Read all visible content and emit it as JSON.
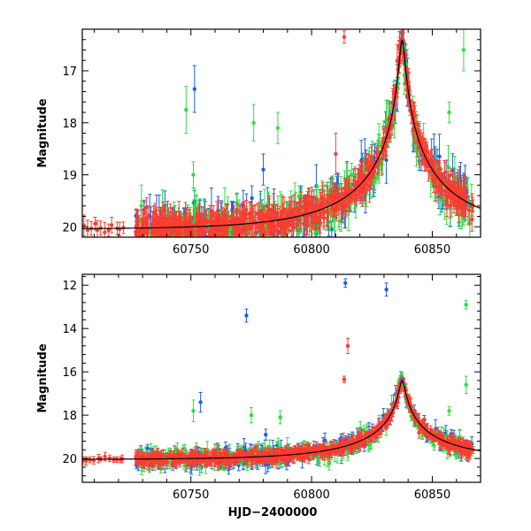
{
  "chart_data": [
    {
      "type": "scatter",
      "panel": "top",
      "xlabel": "",
      "ylabel": "Magnitude",
      "xlim": [
        60705,
        60870
      ],
      "ylim": [
        20.2,
        16.2
      ],
      "y_inverted": true,
      "xticks": [
        60750,
        60800,
        60850
      ],
      "yticks": [
        17,
        18,
        19,
        20
      ],
      "series_colors": [
        "#ff3b30",
        "#1f5fe0",
        "#2ee03a"
      ],
      "model_color": "#000000",
      "model": {
        "t0": 60837.5,
        "u0": 0.025,
        "tE": 45,
        "base": 20.05,
        "blend": 0.7
      },
      "outliers": [
        {
          "x": 60751.5,
          "y": 17.35,
          "err": 0.45,
          "series": 1
        },
        {
          "x": 60748.0,
          "y": 17.75,
          "err": 0.45,
          "series": 2
        },
        {
          "x": 60751.0,
          "y": 19.0,
          "err": 0.25,
          "series": 2
        },
        {
          "x": 60776.0,
          "y": 18.0,
          "err": 0.35,
          "series": 2
        },
        {
          "x": 60786.0,
          "y": 18.1,
          "err": 0.3,
          "series": 2
        },
        {
          "x": 60813.5,
          "y": 16.35,
          "err": 0.12,
          "series": 0
        },
        {
          "x": 60863.0,
          "y": 16.6,
          "err": 0.4,
          "series": 2
        },
        {
          "x": 60857.0,
          "y": 17.8,
          "err": 0.2,
          "series": 2
        },
        {
          "x": 60810.0,
          "y": 18.6,
          "err": 0.4,
          "series": 0
        },
        {
          "x": 60780.0,
          "y": 18.9,
          "err": 0.3,
          "series": 1
        }
      ]
    },
    {
      "type": "scatter",
      "panel": "bottom",
      "xlabel": "HJD−2400000",
      "ylabel": "Magnitude",
      "xlim": [
        60705,
        60870
      ],
      "ylim": [
        21.1,
        11.5
      ],
      "y_inverted": true,
      "xticks": [
        60750,
        60800,
        60850
      ],
      "yticks": [
        12,
        14,
        16,
        18,
        20
      ],
      "series_colors": [
        "#ff3b30",
        "#1f5fe0",
        "#2ee03a"
      ],
      "model_color": "#000000",
      "model": {
        "t0": 60837.5,
        "u0": 0.025,
        "tE": 45,
        "base": 20.05,
        "blend": 0.7
      },
      "outliers": [
        {
          "x": 60814.0,
          "y": 11.9,
          "err": 0.2,
          "series": 1
        },
        {
          "x": 60831.0,
          "y": 12.2,
          "err": 0.3,
          "series": 1
        },
        {
          "x": 60773.0,
          "y": 13.4,
          "err": 0.3,
          "series": 1
        },
        {
          "x": 60815.0,
          "y": 14.8,
          "err": 0.35,
          "series": 0
        },
        {
          "x": 60813.5,
          "y": 16.35,
          "err": 0.15,
          "series": 0
        },
        {
          "x": 60864.0,
          "y": 12.9,
          "err": 0.2,
          "series": 2
        },
        {
          "x": 60864.0,
          "y": 16.6,
          "err": 0.4,
          "series": 2
        },
        {
          "x": 60751.0,
          "y": 17.8,
          "err": 0.5,
          "series": 2
        },
        {
          "x": 60754.0,
          "y": 17.4,
          "err": 0.45,
          "series": 1
        },
        {
          "x": 60775.0,
          "y": 18.0,
          "err": 0.35,
          "series": 2
        },
        {
          "x": 60787.0,
          "y": 18.1,
          "err": 0.3,
          "series": 2
        },
        {
          "x": 60857.0,
          "y": 17.8,
          "err": 0.2,
          "series": 2
        },
        {
          "x": 60781.0,
          "y": 18.9,
          "err": 0.25,
          "series": 1
        }
      ]
    }
  ]
}
